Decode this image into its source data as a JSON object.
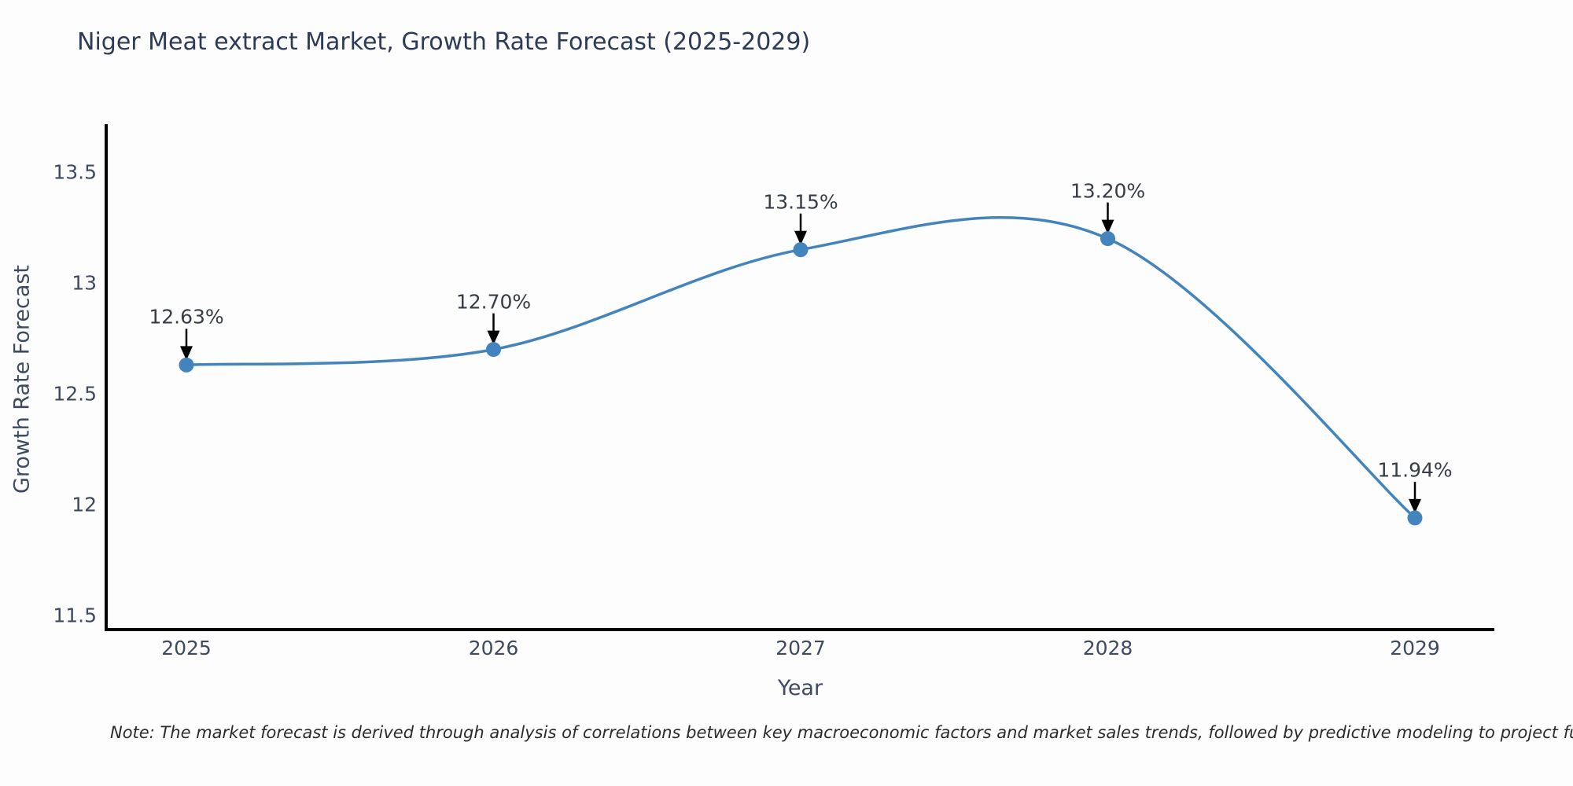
{
  "page": {
    "background": "#fdfdfd"
  },
  "chart_data": {
    "type": "line",
    "title": "Niger Meat extract Market, Growth Rate Forecast (2025-2029)",
    "xlabel": "Year",
    "ylabel": "Growth Rate Forecast",
    "categories": [
      "2025",
      "2026",
      "2027",
      "2028",
      "2029"
    ],
    "series": [
      {
        "name": "Growth Rate Forecast",
        "values": [
          12.63,
          12.7,
          13.15,
          13.2,
          11.94
        ],
        "point_labels": [
          "12.63%",
          "12.70%",
          "13.15%",
          "13.20%",
          "11.94%"
        ]
      }
    ],
    "yticks": [
      11.5,
      12,
      12.5,
      13,
      13.5
    ],
    "ytick_labels": [
      "11.5",
      "12",
      "12.5",
      "13",
      "13.5"
    ],
    "ylim": [
      11.44,
      13.72
    ],
    "grid": false,
    "legend": "none",
    "line_smoothing": "spline",
    "colors": {
      "line": "#4384bc",
      "marker": "#4384bc",
      "axis": "#000000",
      "title_text": "#2d3a58",
      "tick_text": "#3d4a61",
      "annotation_text": "#363d47",
      "annotation_arrow": "#000000"
    },
    "note": "Note: The market forecast is derived through analysis of correlations between key macroeconomic factors and market sales trends, followed by predictive modeling to project future sales"
  }
}
